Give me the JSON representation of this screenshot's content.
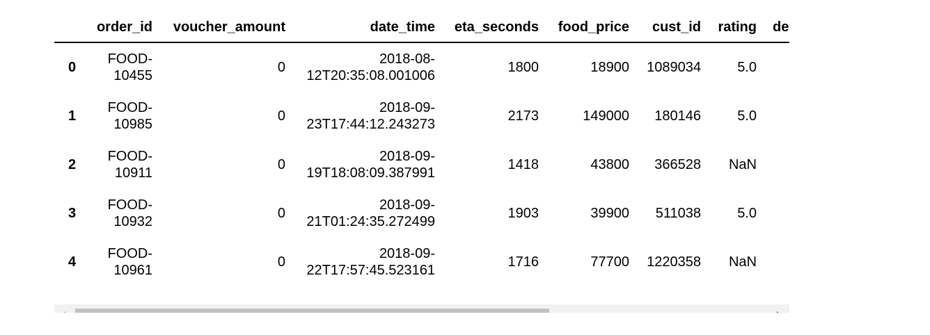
{
  "table": {
    "columns": [
      "",
      "order_id",
      "voucher_amount",
      "date_time",
      "eta_seconds",
      "food_price",
      "cust_id",
      "rating",
      "de"
    ],
    "rows": [
      {
        "index": "0",
        "order_id_1": "FOOD-",
        "order_id_2": "10455",
        "voucher_amount": "0",
        "date_1": "2018-08-",
        "date_2": "12T20:35:08.001006",
        "eta_seconds": "1800",
        "food_price": "18900",
        "cust_id": "1089034",
        "rating": "5.0"
      },
      {
        "index": "1",
        "order_id_1": "FOOD-",
        "order_id_2": "10985",
        "voucher_amount": "0",
        "date_1": "2018-09-",
        "date_2": "23T17:44:12.243273",
        "eta_seconds": "2173",
        "food_price": "149000",
        "cust_id": "180146",
        "rating": "5.0"
      },
      {
        "index": "2",
        "order_id_1": "FOOD-",
        "order_id_2": "10911",
        "voucher_amount": "0",
        "date_1": "2018-09-",
        "date_2": "19T18:08:09.387991",
        "eta_seconds": "1418",
        "food_price": "43800",
        "cust_id": "366528",
        "rating": "NaN"
      },
      {
        "index": "3",
        "order_id_1": "FOOD-",
        "order_id_2": "10932",
        "voucher_amount": "0",
        "date_1": "2018-09-",
        "date_2": "21T01:24:35.272499",
        "eta_seconds": "1903",
        "food_price": "39900",
        "cust_id": "511038",
        "rating": "5.0"
      },
      {
        "index": "4",
        "order_id_1": "FOOD-",
        "order_id_2": "10961",
        "voucher_amount": "0",
        "date_1": "2018-09-",
        "date_2": "22T17:57:45.523161",
        "eta_seconds": "1716",
        "food_price": "77700",
        "cust_id": "1220358",
        "rating": "NaN"
      }
    ]
  },
  "scrollbar": {
    "left_icon": "scroll-left-arrow-icon",
    "right_icon": "scroll-right-arrow-icon",
    "position_fraction": 0.0
  },
  "colors": {
    "scroll_track": "#f1f1f1",
    "scroll_thumb": "#c1c1c1",
    "header_rule": "#000000"
  }
}
